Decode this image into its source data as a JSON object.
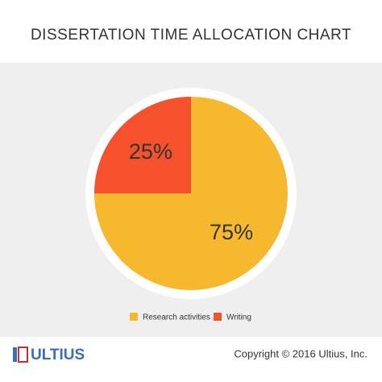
{
  "chart_data": {
    "type": "pie",
    "title": "DISSERTATION TIME ALLOCATION CHART",
    "categories": [
      "Research activities",
      "Writing"
    ],
    "values": [
      75,
      25
    ],
    "value_labels": [
      "75%",
      "25%"
    ],
    "colors": [
      "#f6b92e",
      "#f4512c"
    ]
  },
  "footer": {
    "logo": "ULTIUS",
    "copyright": "Copyright © 2016 Ultius, Inc."
  }
}
